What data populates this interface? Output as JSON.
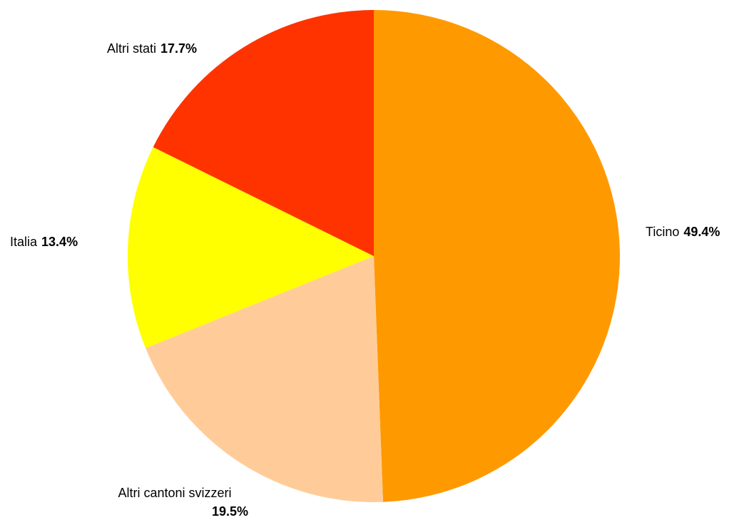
{
  "chart_data": {
    "type": "pie",
    "categories": [
      "Ticino",
      "Altri cantoni svizzeri",
      "Italia",
      "Altri stati"
    ],
    "values": [
      49.4,
      19.5,
      13.4,
      17.7
    ],
    "value_labels": [
      "49.4%",
      "19.5%",
      "13.4%",
      "17.7%"
    ],
    "colors": [
      "#ff9900",
      "#ffcc99",
      "#ffff00",
      "#ff3300"
    ]
  }
}
